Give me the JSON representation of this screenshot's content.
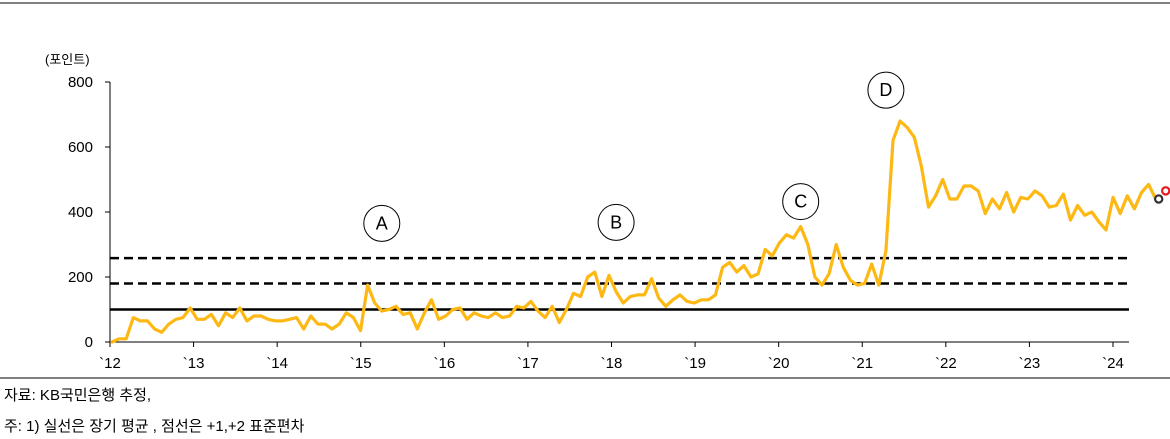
{
  "chart_data": {
    "type": "line",
    "unit_label": "(포인트)",
    "ylim": [
      0,
      800
    ],
    "y_ticks": [
      0,
      200,
      400,
      600,
      800
    ],
    "x_ticks": [
      "`12",
      "`13",
      "`14",
      "`15",
      "`16",
      "`17",
      "`18",
      "`19",
      "`20",
      "`21",
      "`22",
      "`23",
      "`24"
    ],
    "grid": false,
    "series": [
      {
        "color": "#FDB813",
        "values": [
          0,
          10,
          10,
          75,
          65,
          65,
          40,
          30,
          55,
          70,
          75,
          105,
          70,
          70,
          85,
          50,
          90,
          75,
          105,
          65,
          80,
          80,
          70,
          65,
          65,
          70,
          75,
          40,
          80,
          55,
          55,
          40,
          55,
          90,
          75,
          35,
          175,
          120,
          95,
          100,
          110,
          85,
          90,
          40,
          90,
          130,
          70,
          80,
          100,
          105,
          70,
          90,
          80,
          75,
          90,
          75,
          80,
          110,
          105,
          125,
          95,
          75,
          110,
          60,
          100,
          150,
          140,
          200,
          215,
          140,
          205,
          155,
          120,
          140,
          145,
          145,
          195,
          135,
          110,
          130,
          145,
          125,
          120,
          130,
          130,
          145,
          230,
          245,
          215,
          235,
          200,
          210,
          285,
          265,
          305,
          330,
          320,
          355,
          300,
          200,
          175,
          210,
          300,
          230,
          190,
          175,
          180,
          240,
          175,
          280,
          620,
          680,
          660,
          630,
          540,
          415,
          450,
          500,
          440,
          440,
          480,
          480,
          465,
          395,
          440,
          410,
          460,
          400,
          445,
          440,
          465,
          450,
          415,
          420,
          455,
          375,
          420,
          390,
          400,
          370,
          345,
          445,
          395,
          450,
          410,
          460,
          485,
          440
        ],
        "end_markers": [
          {
            "value": 440,
            "color": "#333333"
          },
          {
            "value": 465,
            "color": "#E8191E"
          }
        ]
      }
    ],
    "reference_lines": [
      {
        "value": 100,
        "style": "solid"
      },
      {
        "value": 180,
        "style": "dashed"
      },
      {
        "value": 258,
        "style": "dashed"
      }
    ],
    "annotations": [
      {
        "label": "A",
        "date_index": 38,
        "value": 365
      },
      {
        "label": "B",
        "date_index": 71,
        "value": 368
      },
      {
        "label": "C",
        "date_index": 97,
        "value": 432
      },
      {
        "label": "D",
        "date_index": 109,
        "value": 775
      }
    ]
  },
  "notes": {
    "source": "자료: KB국민은행 추정,",
    "footnote": "주: 1) 실선은 장기 평균 , 점선은 +1,+2 표준편차"
  }
}
